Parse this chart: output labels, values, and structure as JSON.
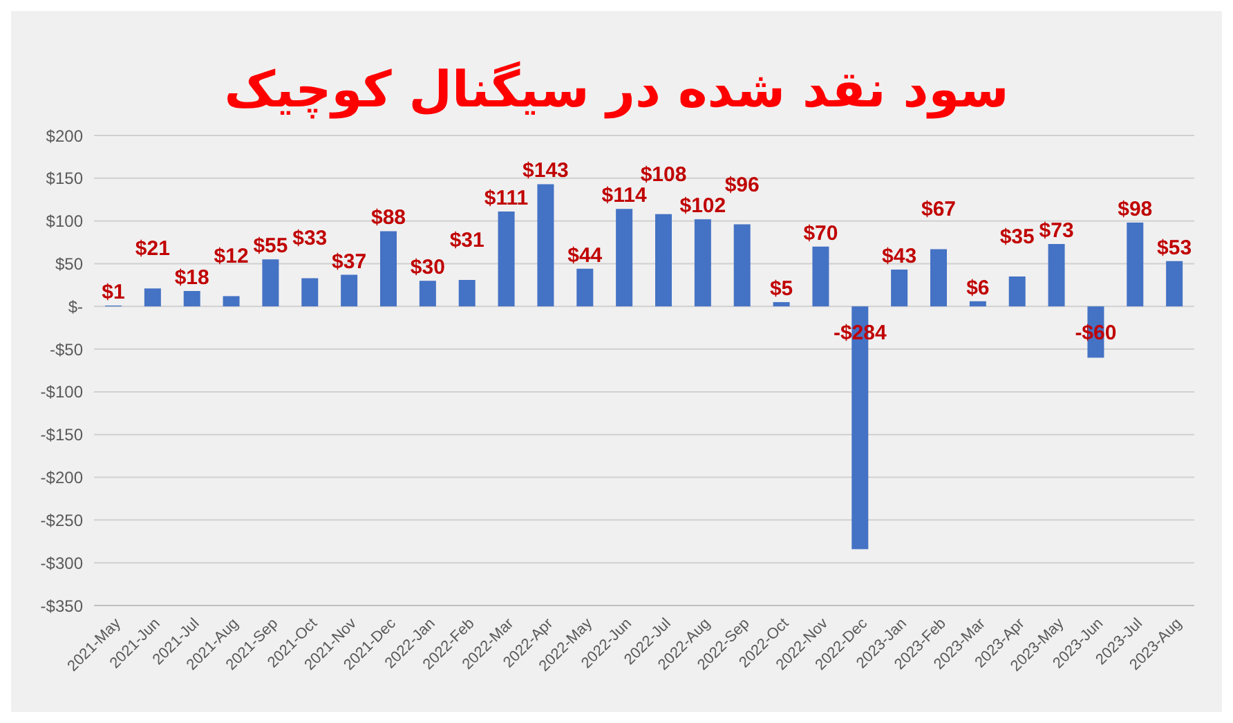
{
  "chart_data": {
    "type": "bar",
    "title": "سود نقد شده در سیگنال کوچیک",
    "categories": [
      "2021-May",
      "2021-Jun",
      "2021-Jul",
      "2021-Aug",
      "2021-Sep",
      "2021-Oct",
      "2021-Nov",
      "2021-Dec",
      "2022-Jan",
      "2022-Feb",
      "2022-Mar",
      "2022-Apr",
      "2022-May",
      "2022-Jun",
      "2022-Jul",
      "2022-Aug",
      "2022-Sep",
      "2022-Oct",
      "2022-Nov",
      "2022-Dec",
      "2023-Jan",
      "2023-Feb",
      "2023-Mar",
      "2023-Apr",
      "2023-May",
      "2023-Jun",
      "2023-Jul",
      "2023-Aug"
    ],
    "values": [
      1,
      21,
      18,
      12,
      55,
      33,
      37,
      88,
      30,
      31,
      111,
      143,
      44,
      114,
      108,
      102,
      96,
      5,
      70,
      -284,
      43,
      67,
      6,
      35,
      73,
      -60,
      98,
      53
    ],
    "value_labels": [
      "$1",
      "$21",
      "$18",
      "$12",
      "$55",
      "$33",
      "$37",
      "$88",
      "$30",
      "$31",
      "$111",
      "$143",
      "$44",
      "$114",
      "$108",
      "$102",
      "$96",
      "$5",
      "$70",
      "-$284",
      "$43",
      "$67",
      "$6",
      "$35",
      "$73",
      "-$60",
      "$98",
      "$53"
    ],
    "color": "#4472c4",
    "ylim": [
      -350,
      200
    ],
    "yticks": [
      {
        "value": -350,
        "label": "-$350"
      },
      {
        "value": -300,
        "label": "-$300"
      },
      {
        "value": -250,
        "label": "-$250"
      },
      {
        "value": -200,
        "label": "-$200"
      },
      {
        "value": -150,
        "label": "-$150"
      },
      {
        "value": -100,
        "label": "-$100"
      },
      {
        "value": -50,
        "label": "-$50"
      },
      {
        "value": 0,
        "label": "$-"
      },
      {
        "value": 50,
        "label": "$50"
      },
      {
        "value": 100,
        "label": "$100"
      },
      {
        "value": 150,
        "label": "$150"
      },
      {
        "value": 200,
        "label": "$200"
      }
    ],
    "grid": "y"
  }
}
